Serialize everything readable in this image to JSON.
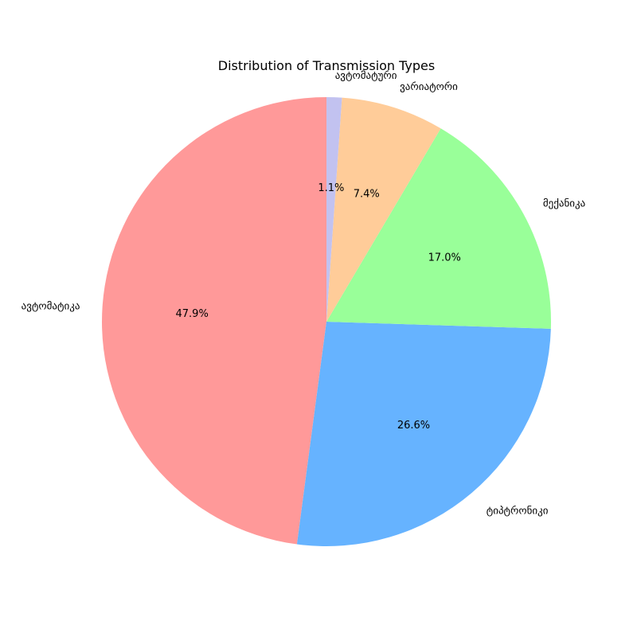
{
  "chart_data": {
    "type": "pie",
    "title": "Distribution of Transmission Types",
    "start_angle_deg": 90,
    "direction": "counterclockwise",
    "slices": [
      {
        "label": "ავტომატიკა",
        "value": 47.9,
        "pct_label": "47.9%",
        "color": "#ff9999"
      },
      {
        "label": "ტიპტრონიკი",
        "value": 26.6,
        "pct_label": "26.6%",
        "color": "#66b3ff"
      },
      {
        "label": "მექანიკა",
        "value": 17.0,
        "pct_label": "17.0%",
        "color": "#99ff99"
      },
      {
        "label": "ვარიატორი",
        "value": 7.4,
        "pct_label": "7.4%",
        "color": "#ffcc99"
      },
      {
        "label": "ავტომატური",
        "value": 1.1,
        "pct_label": "1.1%",
        "color": "#c2c2f0"
      }
    ]
  }
}
